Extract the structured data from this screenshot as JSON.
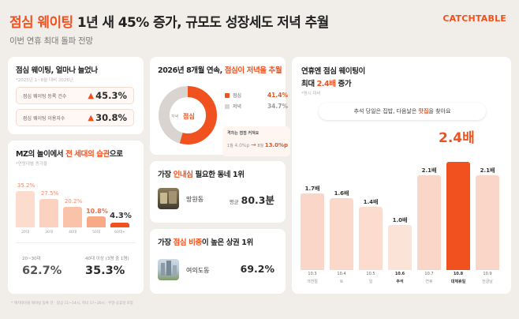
{
  "header": {
    "title_accent": "점심 웨이팅",
    "title_rest": " 1년 새 45% 증가, 규모도 성장세도 저녁 추월",
    "subtitle": "이번 연휴 최대 돌파 전망",
    "logo": "CATCHTABLE"
  },
  "card_growth": {
    "title": "점심 웨이팅, 얼마나 늘었나",
    "note": "*2025년 1~8월 대비 2026년",
    "rows": [
      {
        "label": "점심 웨이팅 등록 건수",
        "value": "45.3%"
      },
      {
        "label": "점심 웨이팅 이용자수",
        "value": "30.8%"
      }
    ],
    "arrow": "▲"
  },
  "card_mz": {
    "title_pre": "MZ의 놀이에서 ",
    "title_accent": "전 세대의 습관",
    "title_post": "으로",
    "note": "*연령대별 증가율",
    "chart_data": {
      "type": "bar",
      "categories": [
        "20대",
        "30대",
        "40대",
        "50대",
        "60대+"
      ],
      "values": [
        35.2,
        27.5,
        20.2,
        10.8,
        4.3
      ],
      "value_labels": [
        "35.2%",
        "27.5%",
        "20.2%",
        "10.8%",
        "4.3%"
      ],
      "ylim": [
        0,
        40
      ]
    },
    "stats": [
      {
        "caption": "20~30대",
        "value": "62.7%"
      },
      {
        "caption": "40대 이상 (3명 중 1명)",
        "value": "35.3%"
      }
    ]
  },
  "card_share": {
    "title_pre": "2026년 8개월 연속, ",
    "title_accent": "점심이 저녁을 추월",
    "donut_label_dinner": "저녁",
    "donut_label_lunch": "점심",
    "chart_data": {
      "type": "pie",
      "categories": [
        "점심",
        "저녁"
      ],
      "values": [
        41.4,
        34.7
      ]
    },
    "legend": [
      {
        "label": "점심",
        "value": "41.4%",
        "color": "#f0511f"
      },
      {
        "label": "저녁",
        "value": "34.7%",
        "color": "#d9d4cf"
      }
    ],
    "gap_caption": "격차는 점점 커져요",
    "gap_from_label": "1월",
    "gap_from_value": "4.0%p",
    "gap_arrow": "→",
    "gap_to_label": "8월",
    "gap_to_value": "13.0%p"
  },
  "card_area": {
    "title_pre": "가장 ",
    "title_accent": "인내심",
    "title_post": " 필요한 동네 1위",
    "name": "망원동",
    "value_prefix": "평균",
    "value": "80.3분"
  },
  "card_district": {
    "title_pre": "가장 ",
    "title_accent": "점심 비중",
    "title_post": "이 높은 상권 1위",
    "name": "여의도동",
    "value": "69.2%"
  },
  "card_holiday": {
    "title_line1": "연휴엔 점심 웨이팅이",
    "title_line2_pre": "최대 ",
    "title_line2_accent": "2.4배",
    "title_line2_post": " 증가",
    "note": "*평시 대비",
    "callout_pre": "추석 당일은 집밥, 다음날은 ",
    "callout_accent": "맛집",
    "callout_post": "을 찾아요",
    "peak_label": "2.4배",
    "chart_data": {
      "type": "bar",
      "categories": [
        "10.3",
        "10.4",
        "10.5",
        "10.6",
        "10.7",
        "10.8",
        "10.9"
      ],
      "day_labels": [
        "개천절",
        "토",
        "일",
        "추석",
        "연휴",
        "대체휴일",
        "한글날"
      ],
      "values": [
        1.7,
        1.6,
        1.4,
        1.0,
        2.1,
        2.4,
        2.1
      ],
      "value_labels": [
        "1.7배",
        "1.6배",
        "1.4배",
        "1.0배",
        "2.1배",
        "2.4배",
        "2.1배"
      ],
      "ylim": [
        0,
        2.6
      ]
    }
  },
  "footnote": "* 캐치테이블 웨이팅 등록 건 · 점심 11~14시, 저녁 17~20시 · 주말·공휴일 포함",
  "colors": {
    "accent": "#f0511f",
    "light": "#f9d2c1",
    "background": "#f1eeea"
  }
}
